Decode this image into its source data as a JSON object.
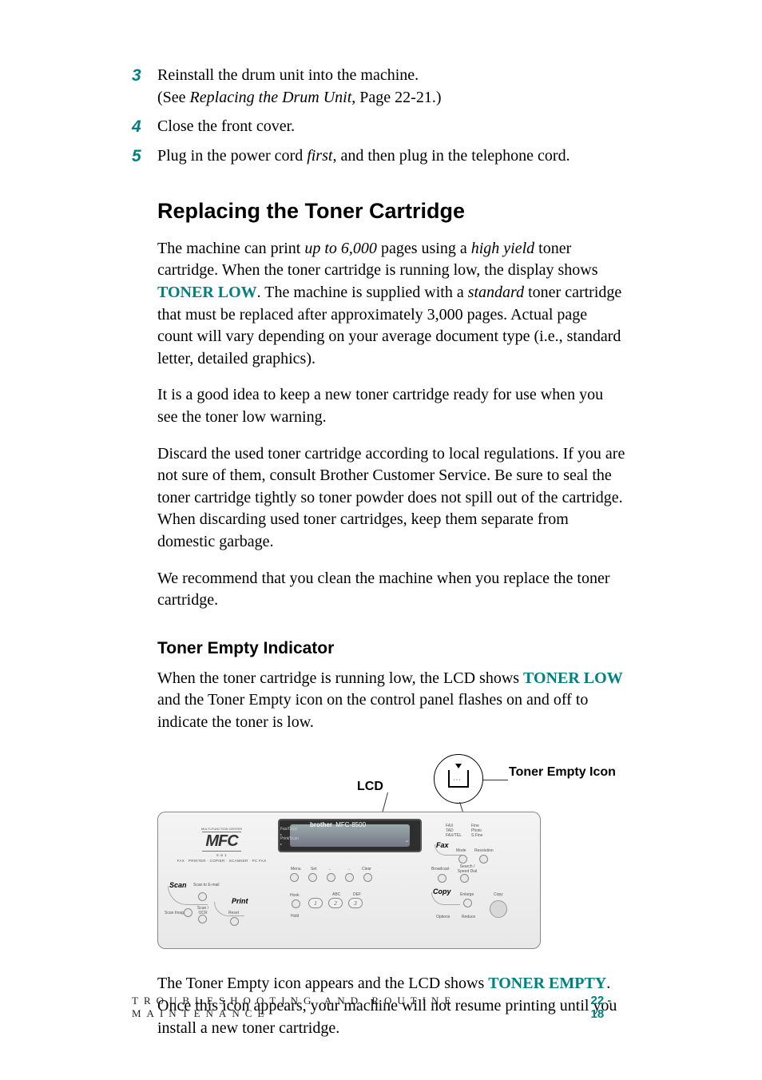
{
  "colors": {
    "accent": "#008080",
    "text": "#000000",
    "bg": "#ffffff",
    "panel_border": "#888888",
    "panel_bg_top": "#f4f4f4",
    "panel_bg_bottom": "#e8e8e8",
    "lcd_dark": "#2e2e2e"
  },
  "typography": {
    "body_family": "Times New Roman",
    "heading_family": "Arial",
    "body_size_pt": 15,
    "h1_size_pt": 20,
    "h2_size_pt": 16,
    "step_num_size_pt": 16
  },
  "steps": [
    {
      "num": "3",
      "parts": [
        {
          "t": "Reinstall the drum unit into the machine."
        },
        {
          "br": true
        },
        {
          "t": "(See "
        },
        {
          "t": "Replacing the Drum Unit",
          "ital": true
        },
        {
          "t": ", Page 22-21.)"
        }
      ]
    },
    {
      "num": "4",
      "parts": [
        {
          "t": "Close the front cover."
        }
      ]
    },
    {
      "num": "5",
      "parts": [
        {
          "t": "Plug in the power cord "
        },
        {
          "t": "first",
          "ital": true
        },
        {
          "t": ", and then plug in the telephone cord."
        }
      ]
    }
  ],
  "h1": "Replacing the Toner Cartridge",
  "p1": [
    {
      "t": "The machine can print "
    },
    {
      "t": "up to 6,000",
      "ital": true
    },
    {
      "t": " pages using a "
    },
    {
      "t": "high yield",
      "ital": true
    },
    {
      "t": " toner cartridge.  When the toner cartridge is running low, the display shows "
    },
    {
      "t": "TONER LOW",
      "kw": true
    },
    {
      "t": ".  The machine is supplied with a "
    },
    {
      "t": "standard",
      "ital": true
    },
    {
      "t": " toner cartridge that must be replaced after approximately 3,000 pages.  Actual page count will vary depending on your average document type (i.e., standard letter, detailed graphics)."
    }
  ],
  "p2": [
    {
      "t": "It is a good idea to keep a new toner cartridge ready for use when you see the toner low warning."
    }
  ],
  "p3": [
    {
      "t": "Discard the used toner cartridge according to local regulations.  If you are not sure of them, consult Brother Customer Service.  Be sure to seal the toner cartridge tightly so toner powder does not spill out of the cartridge.  When discarding used toner cartridges, keep them separate from domestic garbage."
    }
  ],
  "p4": [
    {
      "t": "We recommend that you clean the machine when you replace the toner cartridge."
    }
  ],
  "h2": "Toner Empty Indicator",
  "p5": [
    {
      "t": "When the toner cartridge is running low, the LCD shows "
    },
    {
      "t": "TONER LOW",
      "kw": true
    },
    {
      "t": " and the Toner Empty icon on the control panel flashes on and off to indicate the toner is low."
    }
  ],
  "figure": {
    "callout_lcd": "LCD",
    "callout_icon": "Toner Empty Icon",
    "panel": {
      "brand": "brother",
      "model": "MFC-8500",
      "mfc_top": "MULTI-FUNCTION CENTER",
      "mfc_logo": "MFC",
      "mfc_sub1": "5 in 1",
      "mfc_sub2": "FAX · PRINTER · COPIER · SCANNER · PC FAX",
      "lcd_side": [
        "Fax/Copy",
        "Print/Scan"
      ],
      "nav_labels": [
        "Menu",
        "Set",
        "←",
        "→",
        "Clear"
      ],
      "scan_label": "Scan",
      "scan_items": [
        "Scan to E-mail",
        "Scan Image",
        "Scan / OCR",
        "Reset"
      ],
      "print_label": "Print",
      "fax_label": "Fax",
      "fax_items_left": [
        "FAX",
        "TAD",
        "FAX/TEL"
      ],
      "fax_items_right": [
        "Fine",
        "Photo",
        "S.Fine"
      ],
      "fax_btn_labels": [
        "Mode",
        "Resolution"
      ],
      "fax_row2_labels": [
        "Broadcast",
        "Search / Speed Dial"
      ],
      "copy_label": "Copy",
      "copy_items": [
        "Enlarge",
        "Options",
        "Reduce",
        "Copy"
      ],
      "dial_labels_top": [
        "",
        "ABC",
        "DEF"
      ],
      "dial_keys": [
        "1",
        "2",
        "3"
      ],
      "hook": "Hook",
      "hold": "Hold"
    }
  },
  "p6": [
    {
      "t": "The Toner Empty icon appears and the LCD shows "
    },
    {
      "t": "TONER EMPTY",
      "kw": true
    },
    {
      "t": ".  Once this icon appears, your machine will not resume printing until you install a new toner cartridge."
    }
  ],
  "footer": {
    "title": "TROUBLESHOOTING AND ROUTINE MAINTENANCE",
    "page": "22 - 18"
  }
}
